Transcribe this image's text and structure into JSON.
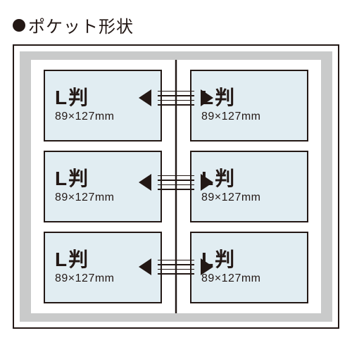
{
  "title": "ポケット形状",
  "pocket": {
    "size_label": "L判",
    "dimensions": "89×127mm"
  },
  "layout": {
    "rows": 3,
    "columns": 2,
    "type": "infographic"
  },
  "colors": {
    "stroke": "#231815",
    "pocket_fill": "#e1edf2",
    "album_bg": "#c9caca",
    "page_bg": "#ffffff",
    "background": "#ffffff"
  },
  "typography": {
    "title_fontsize": 24,
    "size_label_fontsize": 28,
    "size_label_weight": 700,
    "dims_fontsize": 16
  },
  "arrow": {
    "line_count": 4,
    "line_width": 52,
    "head_size": 18
  }
}
